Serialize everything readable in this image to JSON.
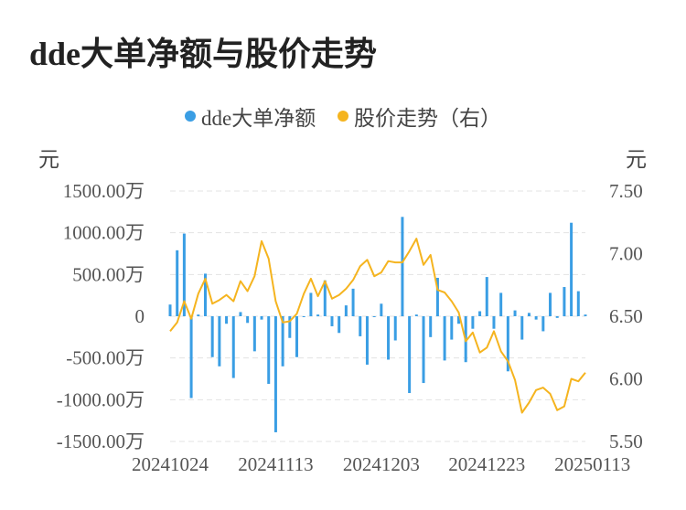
{
  "title": "dde大单净额与股价走势",
  "legend": {
    "bar_label": "dde大单净额",
    "line_label": "股价走势（右）"
  },
  "units": {
    "left": "元",
    "right": "元"
  },
  "colors": {
    "bar": "#3a9ee4",
    "line": "#f5b41f",
    "grid": "#e3e3e3"
  },
  "chart_data": {
    "type": "bar+line",
    "x_tick_labels": [
      "20241024",
      "20241113",
      "20241203",
      "20241223",
      "20250113"
    ],
    "x_tick_indices": [
      0,
      15,
      30,
      45,
      60
    ],
    "left_axis": {
      "ylim": [
        -1500,
        1500
      ],
      "ticks": [
        1500,
        1000,
        500,
        0,
        -500,
        -1000,
        -1500
      ],
      "tick_labels": [
        "1500.00万",
        "1000.00万",
        "500.00万",
        "0",
        "-500.00万",
        "-1000.00万",
        "-1500.00万"
      ]
    },
    "right_axis": {
      "ylim": [
        5.5,
        7.5
      ],
      "ticks": [
        7.5,
        7.0,
        6.5,
        6.0,
        5.5
      ],
      "tick_labels": [
        "7.50",
        "7.00",
        "6.50",
        "6.00",
        "5.50"
      ]
    },
    "series": [
      {
        "name": "dde大单净额",
        "kind": "bar",
        "axis": "left",
        "values": [
          140,
          790,
          990,
          -980,
          20,
          510,
          -490,
          -600,
          -90,
          -740,
          50,
          -80,
          -420,
          -40,
          -810,
          -1390,
          -600,
          -260,
          -490,
          0,
          280,
          20,
          430,
          -120,
          -200,
          130,
          330,
          -240,
          -580,
          0,
          150,
          -520,
          -290,
          1190,
          -920,
          20,
          -800,
          -250,
          460,
          -530,
          -280,
          -90,
          -550,
          -150,
          60,
          470,
          -150,
          280,
          -660,
          70,
          -280,
          40,
          -40,
          -180,
          280,
          -20,
          350,
          1120,
          300,
          20
        ],
        "unit": "万"
      },
      {
        "name": "股价走势（右）",
        "kind": "line",
        "axis": "right",
        "values": [
          6.38,
          6.45,
          6.62,
          6.48,
          6.68,
          6.8,
          6.6,
          6.63,
          6.67,
          6.62,
          6.78,
          6.7,
          6.82,
          7.1,
          6.96,
          6.62,
          6.45,
          6.46,
          6.52,
          6.68,
          6.8,
          6.66,
          6.78,
          6.64,
          6.67,
          6.72,
          6.79,
          6.9,
          6.95,
          6.82,
          6.85,
          6.94,
          6.93,
          6.93,
          7.02,
          7.12,
          6.91,
          6.99,
          6.71,
          6.69,
          6.62,
          6.53,
          6.3,
          6.37,
          6.21,
          6.25,
          6.38,
          6.22,
          6.14,
          5.99,
          5.73,
          5.81,
          5.91,
          5.93,
          5.88,
          5.75,
          5.78,
          6.0,
          5.98,
          6.05
        ]
      }
    ],
    "grid": true,
    "legend_position": "top-center"
  }
}
